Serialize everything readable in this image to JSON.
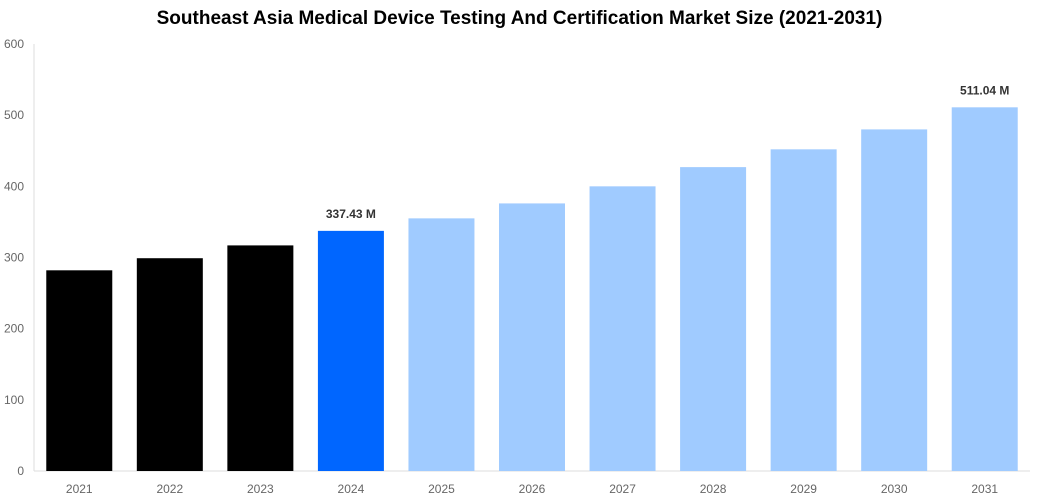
{
  "chart_data": {
    "type": "bar",
    "title": "Southeast Asia Medical Device Testing And Certification Market Size (2021-2031)",
    "xlabel": "",
    "ylabel": "",
    "categories": [
      "2021",
      "2022",
      "2023",
      "2024",
      "2025",
      "2026",
      "2027",
      "2028",
      "2029",
      "2030",
      "2031"
    ],
    "values": [
      282,
      299,
      317,
      337.43,
      355,
      376,
      400,
      427,
      452,
      480,
      511.04
    ],
    "data_labels": {
      "3": "337.43 M",
      "10": "511.04 M"
    },
    "ylim": [
      0,
      600
    ],
    "yticks": [
      0,
      100,
      200,
      300,
      400,
      500,
      600
    ],
    "grid": false,
    "legend": "none",
    "colors": {
      "historical": "#000000",
      "current": "#0066ff",
      "forecast": "#a0cbff",
      "axis": "#dddddd"
    },
    "bar_color_groups": [
      "historical",
      "historical",
      "historical",
      "current",
      "forecast",
      "forecast",
      "forecast",
      "forecast",
      "forecast",
      "forecast",
      "forecast"
    ]
  }
}
